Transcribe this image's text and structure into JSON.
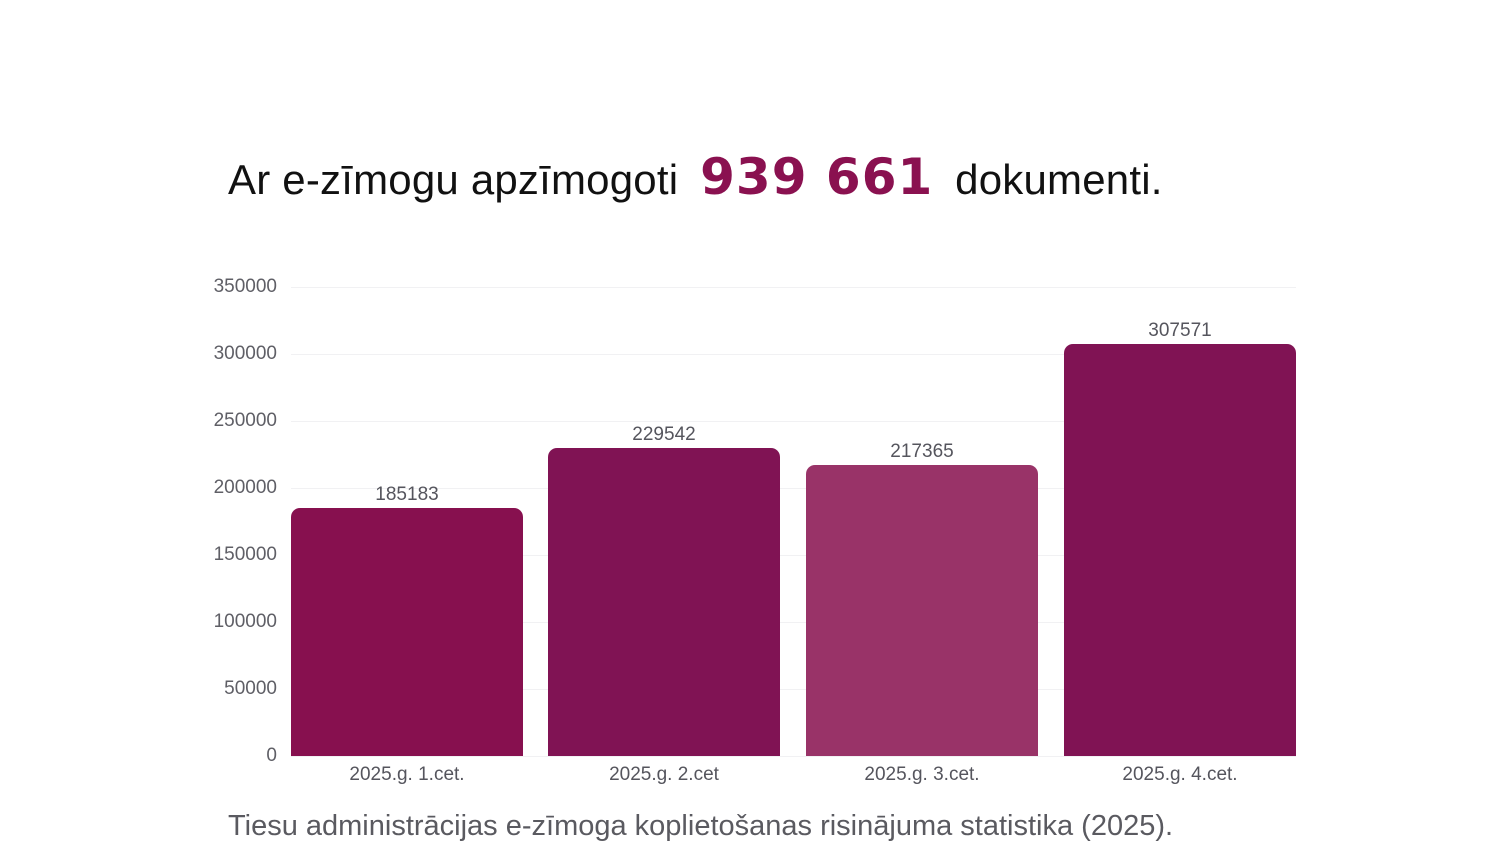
{
  "headline": {
    "prefix": "Ar e-zīmogu apzīmogoti",
    "total": "939 661",
    "suffix": "dokumenti."
  },
  "caption": "Tiesu administrācijas e-zīmoga koplietošanas risinājuma statistika (2025).",
  "colors": {
    "accent": "#8a1150",
    "bar_1": "#87104f",
    "bar_2": "#801354",
    "bar_3": "#993368",
    "bar_4": "#801354"
  },
  "chart_data": {
    "type": "bar",
    "title": "Ar e-zīmogu apzīmogoti 939 661 dokumenti.",
    "subtitle": "Tiesu administrācijas e-zīmoga koplietošanas risinājuma statistika (2025).",
    "categories": [
      "2025.g. 1.cet.",
      "2025.g. 2.cet",
      "2025.g. 3.cet.",
      "2025.g. 4.cet."
    ],
    "values": [
      185183,
      229542,
      217365,
      307571
    ],
    "data_labels": [
      "185183",
      "229542",
      "217365",
      "307571"
    ],
    "xlabel": "",
    "ylabel": "",
    "ylim": [
      0,
      350000
    ],
    "yticks": [
      "0",
      "50000",
      "100000",
      "150000",
      "200000",
      "250000",
      "300000",
      "350000"
    ],
    "grid": true,
    "legend": null
  }
}
